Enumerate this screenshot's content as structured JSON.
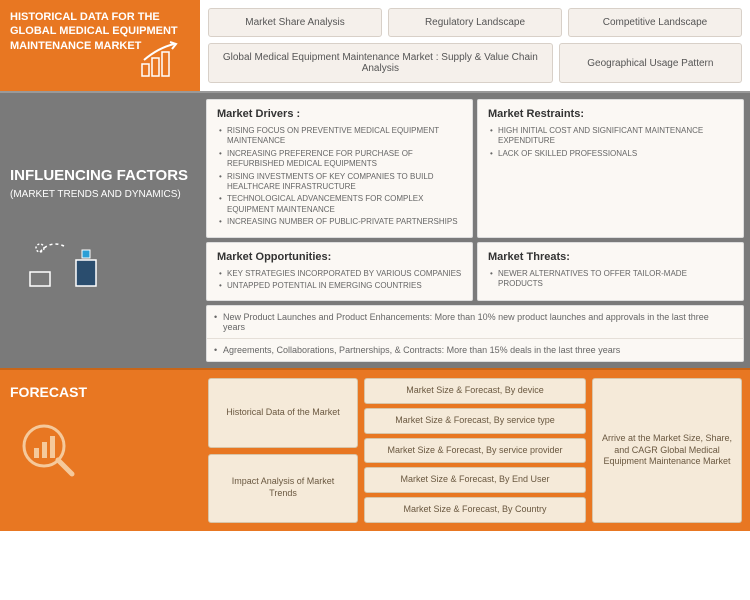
{
  "colors": {
    "orange": "#e87722",
    "gray": "#7a7a7a",
    "pill_bg": "#f5f0eb",
    "card_bg": "#fbf8f4",
    "fpill_bg": "#f5ead9"
  },
  "sec1": {
    "title": "HISTORICAL DATA FOR THE GLOBAL MEDICAL EQUIPMENT MAINTENANCE MARKET",
    "row1": [
      "Market Share Analysis",
      "Regulatory Landscape",
      "Competitive Landscape"
    ],
    "row2": [
      "Global Medical Equipment Maintenance Market : Supply & Value Chain Analysis",
      "Geographical Usage Pattern"
    ]
  },
  "sec2": {
    "title": "INFLUENCING FACTORS",
    "subtitle": "(MARKET TRENDS AND DYNAMICS)",
    "cards": [
      {
        "title": "Market Drivers :",
        "items": [
          "RISING FOCUS ON PREVENTIVE MEDICAL EQUIPMENT MAINTENANCE",
          "INCREASING PREFERENCE FOR PURCHASE OF REFURBISHED MEDICAL EQUIPMENTS",
          "RISING INVESTMENTS OF KEY COMPANIES TO BUILD HEALTHCARE INFRASTRUCTURE",
          "TECHNOLOGICAL ADVANCEMENTS FOR COMPLEX EQUIPMENT MAINTENANCE",
          "INCREASING NUMBER OF PUBLIC-PRIVATE PARTNERSHIPS"
        ]
      },
      {
        "title": "Market Restraints:",
        "items": [
          "HIGH INITIAL COST AND SIGNIFICANT MAINTENANCE EXPENDITURE",
          "LACK OF SKILLED PROFESSIONALS"
        ]
      },
      {
        "title": "Market Opportunities:",
        "items": [
          "KEY STRATEGIES INCORPORATED BY VARIOUS COMPANIES",
          "UNTAPPED POTENTIAL IN EMERGING COUNTRIES"
        ]
      },
      {
        "title": "Market Threats:",
        "items": [
          "NEWER ALTERNATIVES TO OFFER TAILOR-MADE PRODUCTS"
        ]
      }
    ],
    "bottom": [
      "New Product Launches and Product Enhancements: More than 10% new product launches and approvals in the last three years",
      "Agreements, Collaborations, Partnerships, & Contracts: More than 15% deals in the last three years"
    ]
  },
  "sec3": {
    "title": "FORECAST",
    "col1": [
      "Historical Data of the Market",
      "Impact Analysis of Market Trends"
    ],
    "col2": [
      "Market Size & Forecast, By device",
      "Market Size & Forecast, By service type",
      "Market Size & Forecast, By service provider",
      "Market Size & Forecast, By End User",
      "Market Size & Forecast, By Country"
    ],
    "col3": "Arrive at the Market Size, Share, and CAGR Global Medical Equipment Maintenance Market"
  }
}
